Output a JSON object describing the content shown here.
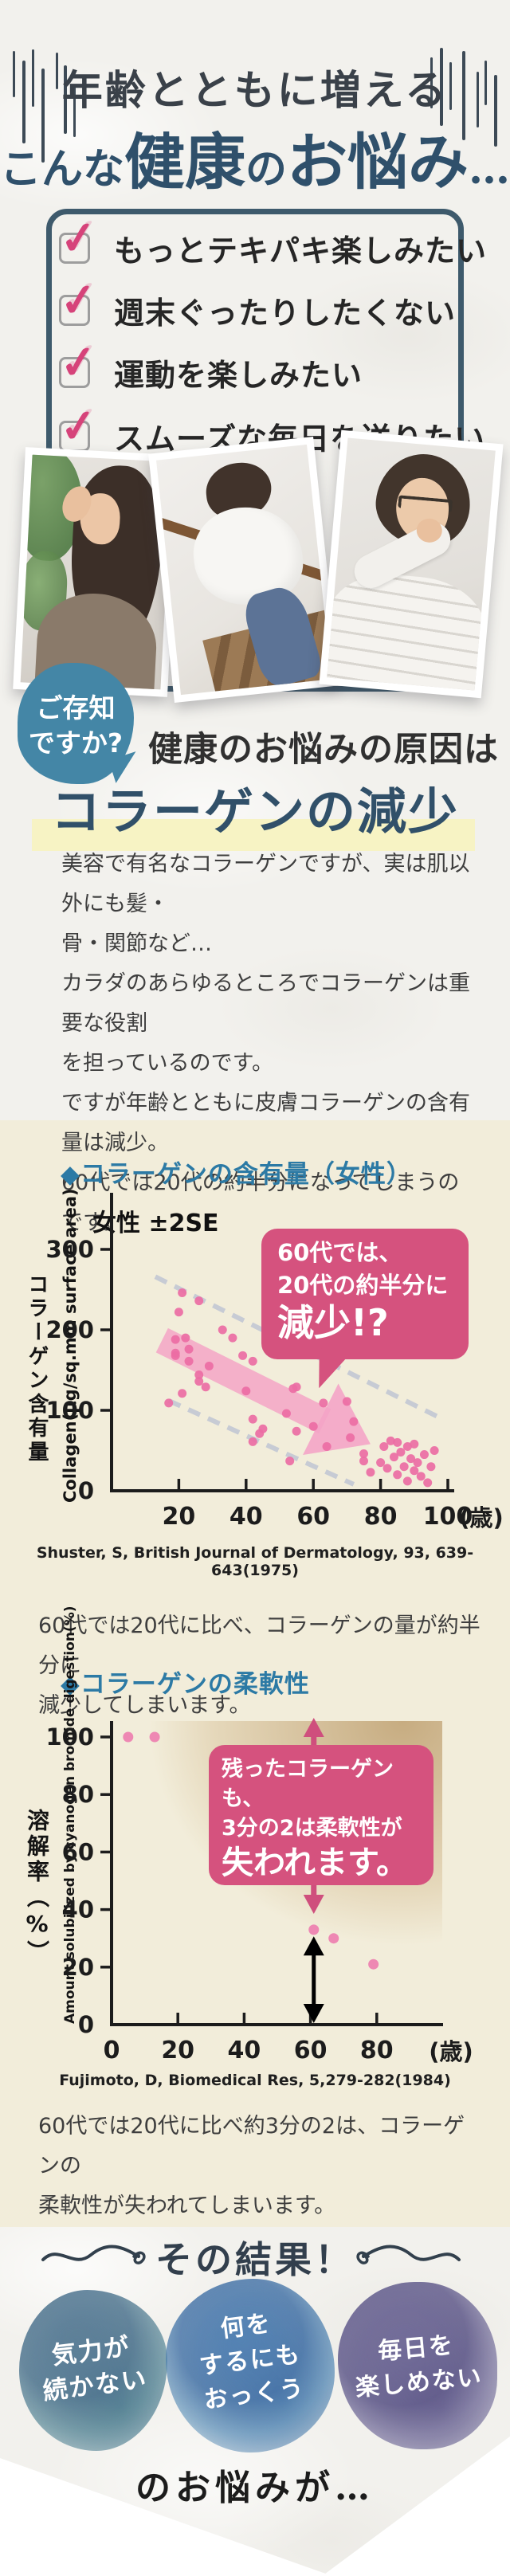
{
  "colors": {
    "navy": "#2f506b",
    "box_border": "#3e5a6c",
    "check_pink": "#d6437a",
    "badge_blue": "#4486a6",
    "highlight_yellow": "#f7f3c4",
    "beige": "#f2edda",
    "heading_teal": "#2c7aa5",
    "callout_pink": "#d5527e",
    "dot_pink": "#ec6ca4",
    "band_gray": "#c7cbd4",
    "arrow_pink": "rgba(244,164,198,0.85)"
  },
  "header": {
    "line1": "年齢とともに増える",
    "line2_prefix": "こんな",
    "line2_strong1": "健康",
    "line2_particle": "の",
    "line2_strong2": "お悩み",
    "line2_ellipsis": "…"
  },
  "checklist": {
    "check_glyph": "✓",
    "items": [
      "もっとテキパキ楽しみたい",
      "週末ぐったりしたくない",
      "運動を楽しみたい",
      "スムーズな毎日を送りたい"
    ]
  },
  "photos": [
    "tired-woman-photo",
    "stairs-woman-photo",
    "shoulder-pain-woman-photo"
  ],
  "cause": {
    "badge_line1": "ご存知",
    "badge_line2": "ですか?",
    "lead": "健康のお悩みの原因は",
    "title": "コラーゲンの減少",
    "body": "美容で有名なコラーゲンですが、実は肌以外にも髪・\n骨・関節など…\nカラダのあらゆるところでコラーゲンは重要な役割\nを担っているのです。\nですが年齢とともに皮膚コラーゲンの含有量は減少。\n60代では20代の約半分になってしまうのです。"
  },
  "chart_data": [
    {
      "type": "scatter",
      "title": "◆コラーゲンの含有量（女性）",
      "inner_label": "女性 ±2SE",
      "ylabel_jp": "コラーゲン含有量",
      "ylabel_en": "Collagen(μg/sq.mm surface area)",
      "xunit": "(歳)",
      "x_ticks": [
        20,
        40,
        60,
        80,
        100
      ],
      "y_ticks": [
        0,
        100,
        200,
        300
      ],
      "xlim": [
        0,
        102
      ],
      "ylim": [
        0,
        370
      ],
      "points": [
        [
          21,
          246
        ],
        [
          26,
          236
        ],
        [
          20,
          222
        ],
        [
          33,
          200
        ],
        [
          36,
          190
        ],
        [
          19,
          188
        ],
        [
          22,
          190
        ],
        [
          19,
          171
        ],
        [
          23,
          176
        ],
        [
          19,
          168
        ],
        [
          23,
          161
        ],
        [
          29,
          155
        ],
        [
          39,
          168
        ],
        [
          42,
          161
        ],
        [
          40,
          124
        ],
        [
          26,
          144
        ],
        [
          26,
          136
        ],
        [
          28,
          129
        ],
        [
          21,
          121
        ],
        [
          17,
          109
        ],
        [
          42,
          89
        ],
        [
          45,
          77
        ],
        [
          44,
          71
        ],
        [
          54,
          127
        ],
        [
          55,
          129
        ],
        [
          52,
          96
        ],
        [
          55,
          74
        ],
        [
          42,
          61
        ],
        [
          53,
          37
        ],
        [
          63,
          109
        ],
        [
          70,
          111
        ],
        [
          72,
          86
        ],
        [
          71,
          66
        ],
        [
          75,
          46
        ],
        [
          75,
          37
        ],
        [
          77,
          23
        ],
        [
          60,
          80
        ],
        [
          64,
          55
        ],
        [
          80,
          35
        ],
        [
          81,
          55
        ],
        [
          82,
          28
        ],
        [
          83,
          62
        ],
        [
          84,
          42
        ],
        [
          85,
          20
        ],
        [
          85,
          60
        ],
        [
          86,
          48
        ],
        [
          87,
          30
        ],
        [
          88,
          55
        ],
        [
          88,
          12
        ],
        [
          89,
          40
        ],
        [
          90,
          25
        ],
        [
          90,
          58
        ],
        [
          91,
          35
        ],
        [
          92,
          18
        ],
        [
          93,
          45
        ],
        [
          94,
          10
        ],
        [
          95,
          30
        ],
        [
          96,
          50
        ]
      ],
      "band_upper": [
        [
          13,
          266
        ],
        [
          98,
          90
        ]
      ],
      "band_lower": [
        [
          17,
          112
        ],
        [
          72,
          8
        ]
      ],
      "trend_arrow": {
        "from": [
          15,
          187
        ],
        "to": [
          77,
          58
        ]
      },
      "callout": {
        "lines": [
          "60代では、",
          "20代の約半分に",
          "減少!?"
        ]
      },
      "source": "Shuster, S, British Journal of Dermatology, 93, 639-643(1975)",
      "note": "60代では20代に比べ、コラーゲンの量が約半分に\n減少してしまいます。"
    },
    {
      "type": "scatter",
      "title": "◆コラーゲンの柔軟性",
      "ylabel_jp": "溶解率（%）",
      "ylabel_en": "Amount solubilized by cyanogen bromide digestion(%)",
      "xunit": "(歳)",
      "x_ticks": [
        0,
        20,
        40,
        60,
        80
      ],
      "y_ticks": [
        0,
        20,
        40,
        60,
        80,
        100
      ],
      "xlim": [
        0,
        100
      ],
      "ylim": [
        0,
        105
      ],
      "points": [
        [
          5,
          100
        ],
        [
          13,
          100
        ],
        [
          61,
          33
        ],
        [
          67,
          30
        ],
        [
          79,
          21
        ]
      ],
      "black_arrow": {
        "x": 61,
        "from": 0,
        "to": 29
      },
      "callout": {
        "lines": [
          "残ったコラーゲンも、",
          "3分の2は柔軟性が",
          "失われます。"
        ]
      },
      "source": "Fujimoto, D, Biomedical Res, 5,279-282(1984)",
      "note": "60代では20代に比べ約3分の2は、コラーゲンの\n柔軟性が失われてしまいます。"
    }
  ],
  "result": {
    "title": "その結果！",
    "bubbles": [
      [
        "気力が",
        "続かない"
      ],
      [
        "何を",
        "するにも",
        "おっくう"
      ],
      [
        "毎日を",
        "楽しめない"
      ]
    ],
    "outro": "のお悩みが…"
  }
}
